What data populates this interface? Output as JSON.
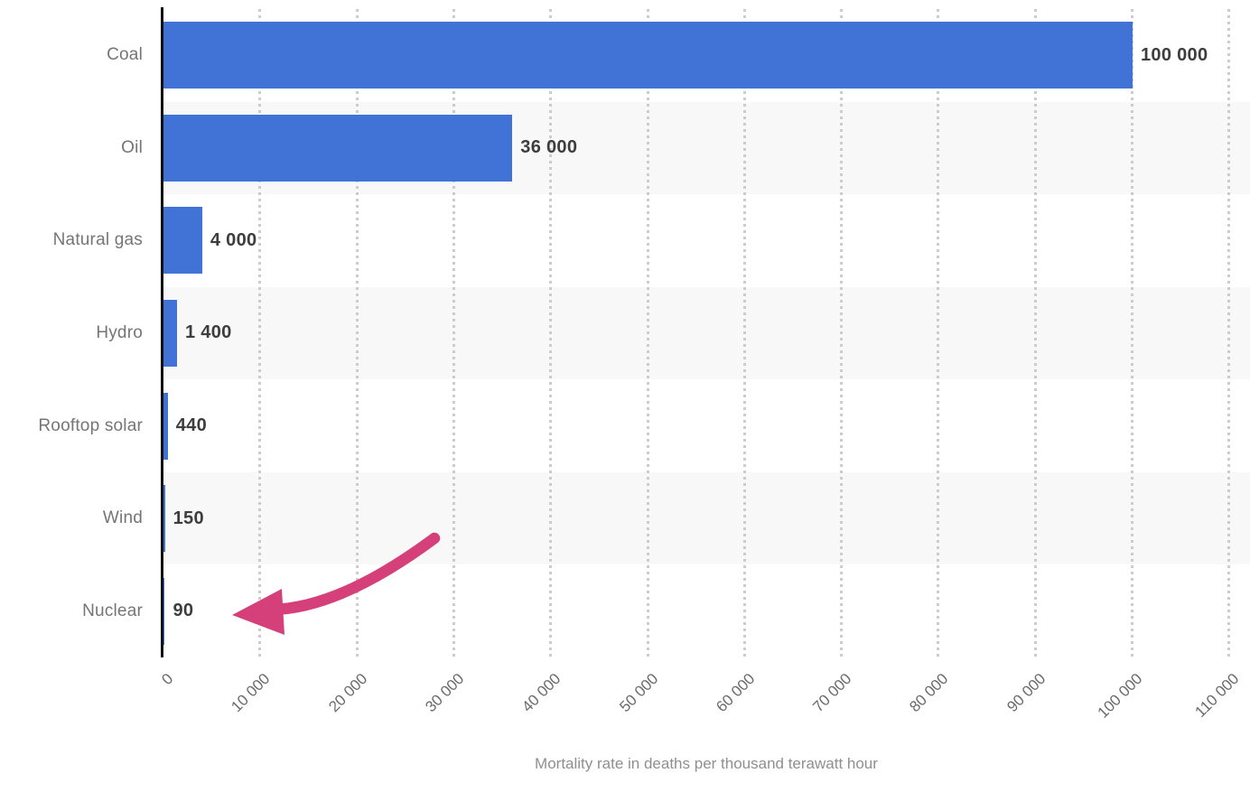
{
  "chart_data": {
    "type": "bar",
    "orientation": "horizontal",
    "title": "",
    "categories": [
      "Coal",
      "Oil",
      "Natural gas",
      "Hydro",
      "Rooftop solar",
      "Wind",
      "Nuclear"
    ],
    "values": [
      100000,
      36000,
      4000,
      1400,
      440,
      150,
      90
    ],
    "value_labels": [
      "100 000",
      "36 000",
      "4 000",
      "1 400",
      "440",
      "150",
      "90"
    ],
    "xlabel": "Mortality rate in deaths per thousand terawatt hour",
    "ylabel": "",
    "x_ticks": [
      "0",
      "10 000",
      "20 000",
      "30 000",
      "40 000",
      "50 000",
      "60 000",
      "70 000",
      "80 000",
      "90 000",
      "100 000",
      "110 000"
    ],
    "xlim": [
      0,
      110000
    ],
    "grid": "vertical-dotted",
    "legend": "none",
    "bar_color": "#4173d6",
    "row_stripe_color": "#f8f8f8",
    "gridline_color": "#cccccc",
    "annotation": {
      "type": "curved-arrow",
      "color": "#d5407a",
      "points_to_category": "Nuclear"
    }
  }
}
